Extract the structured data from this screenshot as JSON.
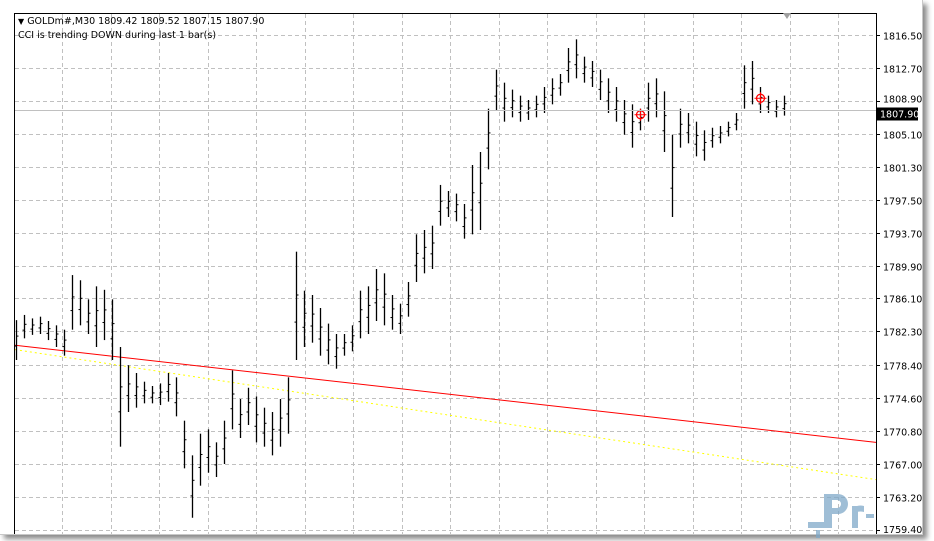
{
  "header": {
    "symbol_line": "GOLDm#,M30  1809.42 1809.52 1807.15 1807.90",
    "indicator_text": "CCI is trending DOWN during last 1 bar(s)"
  },
  "price_axis": {
    "ticks": [
      "1816.50",
      "1812.70",
      "1808.90",
      "1805.10",
      "1801.30",
      "1797.50",
      "1793.70",
      "1789.90",
      "1786.10",
      "1782.30",
      "1778.40",
      "1774.60",
      "1770.80",
      "1767.00",
      "1763.20",
      "1759.40"
    ],
    "current_price": "1807.90"
  },
  "chart_data": {
    "type": "ohlc-bars",
    "symbol": "GOLDm#",
    "timeframe": "M30",
    "ylim": [
      1759.4,
      1819.0
    ],
    "grid": true,
    "bars_high_low": [
      [
        1783.6,
        1779.0
      ],
      [
        1784.2,
        1781.5
      ],
      [
        1783.8,
        1781.9
      ],
      [
        1784.0,
        1782.0
      ],
      [
        1783.5,
        1781.3
      ],
      [
        1783.0,
        1780.5
      ],
      [
        1782.5,
        1779.5
      ],
      [
        1788.8,
        1782.5
      ],
      [
        1788.2,
        1783.0
      ],
      [
        1786.0,
        1782.0
      ],
      [
        1787.5,
        1780.5
      ],
      [
        1787.1,
        1781.3
      ],
      [
        1786.0,
        1779.0
      ],
      [
        1780.5,
        1769.0
      ],
      [
        1778.4,
        1773.0
      ],
      [
        1777.5,
        1773.5
      ],
      [
        1776.5,
        1774.0
      ],
      [
        1776.0,
        1774.0
      ],
      [
        1776.3,
        1773.8
      ],
      [
        1777.5,
        1774.2
      ],
      [
        1777.0,
        1772.5
      ],
      [
        1772.0,
        1766.5
      ],
      [
        1768.0,
        1760.8
      ],
      [
        1770.5,
        1764.5
      ],
      [
        1771.0,
        1766.0
      ],
      [
        1769.5,
        1765.5
      ],
      [
        1772.0,
        1767.0
      ],
      [
        1777.8,
        1771.0
      ],
      [
        1774.5,
        1770.0
      ],
      [
        1775.8,
        1771.5
      ],
      [
        1774.8,
        1769.5
      ],
      [
        1773.5,
        1769.0
      ],
      [
        1773.0,
        1768.0
      ],
      [
        1774.5,
        1769.0
      ],
      [
        1777.0,
        1770.5
      ],
      [
        1791.5,
        1779.0
      ],
      [
        1787.0,
        1780.5
      ],
      [
        1786.5,
        1781.0
      ],
      [
        1785.0,
        1779.5
      ],
      [
        1783.2,
        1778.5
      ],
      [
        1782.0,
        1778.0
      ],
      [
        1782.0,
        1779.5
      ],
      [
        1783.0,
        1780.0
      ],
      [
        1787.0,
        1781.5
      ],
      [
        1787.5,
        1782.0
      ],
      [
        1789.5,
        1783.5
      ],
      [
        1789.0,
        1783.0
      ],
      [
        1786.5,
        1782.5
      ],
      [
        1785.5,
        1782.0
      ],
      [
        1788.0,
        1784.0
      ],
      [
        1793.5,
        1788.0
      ],
      [
        1794.0,
        1789.0
      ],
      [
        1794.5,
        1789.5
      ],
      [
        1799.2,
        1794.5
      ],
      [
        1798.5,
        1795.5
      ],
      [
        1798.2,
        1795.0
      ],
      [
        1797.0,
        1793.0
      ],
      [
        1801.5,
        1793.5
      ],
      [
        1803.0,
        1794.0
      ],
      [
        1808.0,
        1801.0
      ],
      [
        1812.5,
        1807.8
      ],
      [
        1811.0,
        1806.5
      ],
      [
        1810.2,
        1807.0
      ],
      [
        1809.5,
        1806.5
      ],
      [
        1809.0,
        1806.7
      ],
      [
        1809.5,
        1807.0
      ],
      [
        1810.5,
        1807.5
      ],
      [
        1811.5,
        1808.5
      ],
      [
        1812.0,
        1809.5
      ],
      [
        1815.0,
        1811.0
      ],
      [
        1816.0,
        1811.5
      ],
      [
        1814.0,
        1811.0
      ],
      [
        1813.5,
        1810.5
      ],
      [
        1812.5,
        1809.0
      ],
      [
        1811.5,
        1807.5
      ],
      [
        1810.5,
        1806.5
      ],
      [
        1809.0,
        1805.0
      ],
      [
        1808.5,
        1803.5
      ],
      [
        1808.0,
        1805.5
      ],
      [
        1811.0,
        1806.5
      ],
      [
        1811.5,
        1807.0
      ],
      [
        1810.0,
        1803.0
      ],
      [
        1805.0,
        1795.5
      ],
      [
        1808.0,
        1803.5
      ],
      [
        1807.5,
        1804.0
      ],
      [
        1806.5,
        1802.5
      ],
      [
        1805.5,
        1802.0
      ],
      [
        1805.8,
        1803.5
      ],
      [
        1806.0,
        1804.0
      ],
      [
        1806.5,
        1804.8
      ],
      [
        1807.5,
        1805.5
      ],
      [
        1813.0,
        1808.0
      ],
      [
        1813.5,
        1808.5
      ],
      [
        1810.5,
        1807.5
      ],
      [
        1809.5,
        1807.5
      ],
      [
        1809.0,
        1807.0
      ],
      [
        1809.5,
        1807.2
      ]
    ],
    "signal_markers": [
      {
        "bar": 78,
        "price": 1807.3
      },
      {
        "bar": 93,
        "price": 1809.2
      }
    ],
    "trend_lines": [
      {
        "color": "#ff0000",
        "style": "solid",
        "start_price": 1780.7,
        "end_price": 1769.5
      },
      {
        "color": "#ffff00",
        "style": "dotted",
        "start_price": 1780.2,
        "end_price": 1765.2
      }
    ]
  },
  "colors": {
    "bars": "#000000",
    "grid": "#c0c0c0",
    "marker": "#ff0000",
    "price_label_bg": "#000000"
  },
  "watermark": "Prof-FX"
}
